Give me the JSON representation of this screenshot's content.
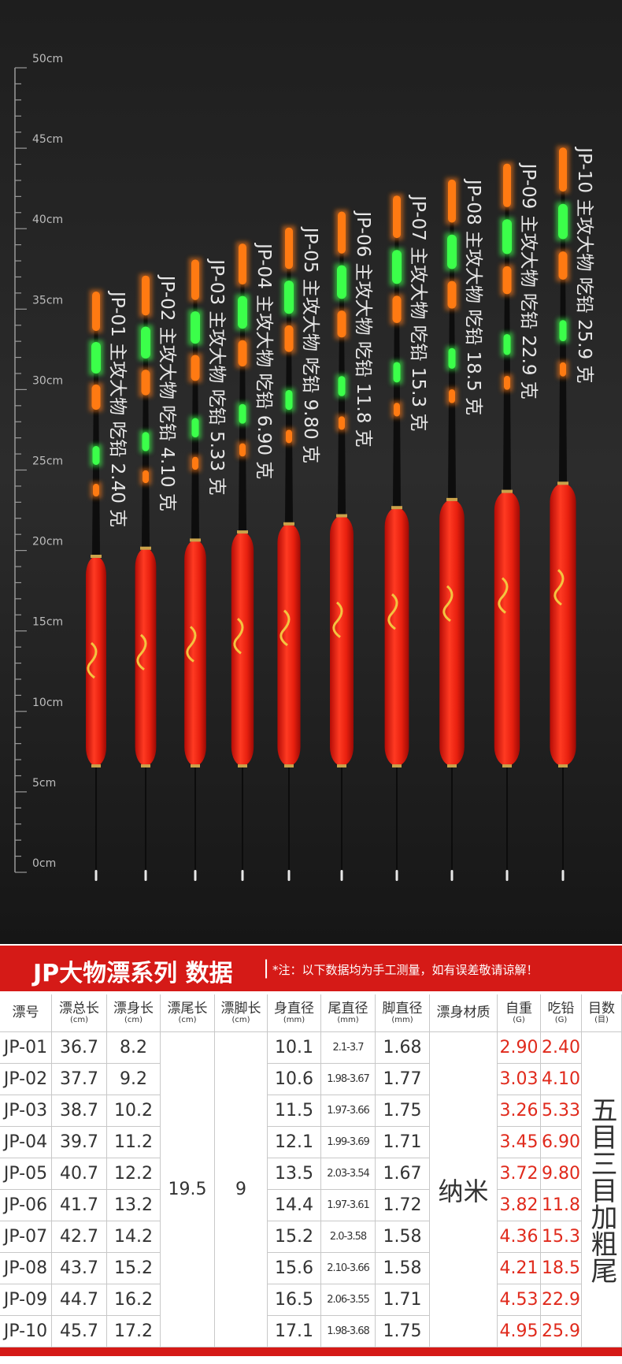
{
  "ruler": {
    "labels": [
      "50cm",
      "45cm",
      "40cm",
      "35cm",
      "30cm",
      "25cm",
      "20cm",
      "15cm",
      "10cm",
      "5cm",
      "0cm"
    ]
  },
  "floats": [
    {
      "label": "JP-01 主攻大物  吃铅 2.40 克"
    },
    {
      "label": "JP-02 主攻大物  吃铅 4.10 克"
    },
    {
      "label": "JP-03 主攻大物  吃铅 5.33 克"
    },
    {
      "label": "JP-04 主攻大物  吃铅 6.90 克"
    },
    {
      "label": "JP-05 主攻大物  吃铅 9.80 克"
    },
    {
      "label": "JP-06 主攻大物  吃铅 11.8 克"
    },
    {
      "label": "JP-07 主攻大物  吃铅 15.3 克"
    },
    {
      "label": "JP-08 主攻大物  吃铅 18.5 克"
    },
    {
      "label": "JP-09 主攻大物  吃铅 22.9 克"
    },
    {
      "label": "JP-10 主攻大物  吃铅 25.9 克"
    }
  ],
  "table": {
    "title": "JP大物漂系列 数据",
    "separator": "|",
    "note": "*注：以下数据均为手工测量，如有误差敬请谅解！",
    "columns": [
      {
        "name": "漂号"
      },
      {
        "name": "漂总长",
        "unit": "(cm)"
      },
      {
        "name": "漂身长",
        "unit": "(cm)"
      },
      {
        "name": "漂尾长",
        "unit": "(cm)"
      },
      {
        "name": "漂脚长",
        "unit": "(cm)"
      },
      {
        "name": "身直径",
        "unit": "(mm)"
      },
      {
        "name": "尾直径",
        "unit": "(mm)"
      },
      {
        "name": "脚直径",
        "unit": "(mm)"
      },
      {
        "name": "漂身材质"
      },
      {
        "name": "自重",
        "unit": "(G)"
      },
      {
        "name": "吃铅",
        "unit": "(G)"
      },
      {
        "name": "目数",
        "unit": "(目)"
      }
    ],
    "rows": [
      [
        "JP-01",
        "36.7",
        "8.2",
        "10.1",
        "2.1-3.7",
        "1.68",
        "2.90",
        "2.40"
      ],
      [
        "JP-02",
        "37.7",
        "9.2",
        "10.6",
        "1.98-3.67",
        "1.77",
        "3.03",
        "4.10"
      ],
      [
        "JP-03",
        "38.7",
        "10.2",
        "11.5",
        "1.97-3.66",
        "1.75",
        "3.26",
        "5.33"
      ],
      [
        "JP-04",
        "39.7",
        "11.2",
        "12.1",
        "1.99-3.69",
        "1.71",
        "3.45",
        "6.90"
      ],
      [
        "JP-05",
        "40.7",
        "12.2",
        "13.5",
        "2.03-3.54",
        "1.67",
        "3.72",
        "9.80"
      ],
      [
        "JP-06",
        "41.7",
        "13.2",
        "14.4",
        "1.97-3.61",
        "1.72",
        "3.82",
        "11.8"
      ],
      [
        "JP-07",
        "42.7",
        "14.2",
        "15.2",
        "2.0-3.58",
        "1.58",
        "4.36",
        "15.3"
      ],
      [
        "JP-08",
        "43.7",
        "15.2",
        "15.6",
        "2.10-3.66",
        "1.58",
        "4.21",
        "18.5"
      ],
      [
        "JP-09",
        "44.7",
        "16.2",
        "16.5",
        "2.06-3.55",
        "1.71",
        "4.53",
        "22.9"
      ],
      [
        "JP-10",
        "45.7",
        "17.2",
        "17.1",
        "1.98-3.68",
        "1.75",
        "4.95",
        "25.9"
      ]
    ],
    "tail_length": "19.5",
    "foot_length": "9",
    "material": "纳米",
    "grade": "五目三目加粗尾"
  }
}
